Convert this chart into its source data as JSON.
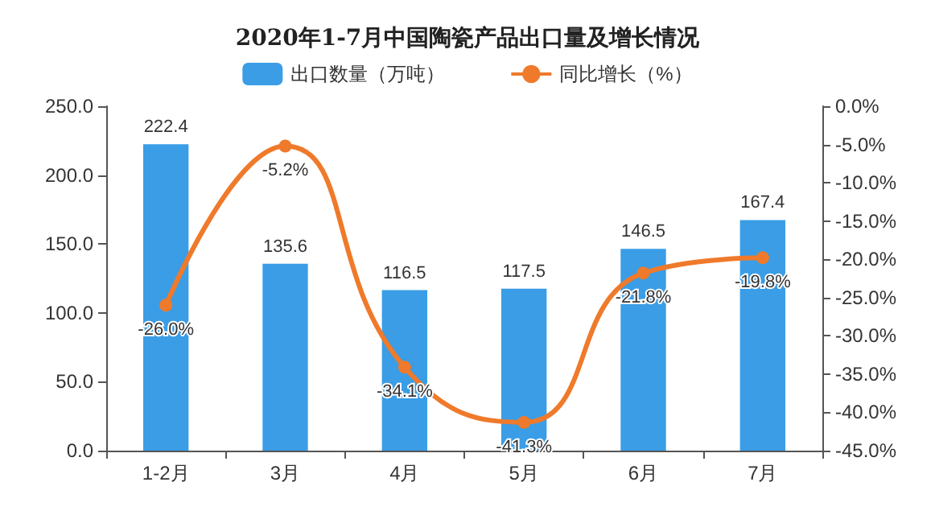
{
  "chart_data": {
    "type": "bar",
    "title": "2020年1-7月中国陶瓷产品出口量及增长情况",
    "categories": [
      "1-2月",
      "3月",
      "4月",
      "5月",
      "6月",
      "7月"
    ],
    "series": [
      {
        "name": "出口数量（万吨）",
        "color": "#3a9de6",
        "values": [
          222.4,
          135.6,
          116.5,
          117.5,
          146.5,
          167.4
        ]
      },
      {
        "name": "同比增长（%）",
        "type": "line",
        "axis": "y2",
        "color": "#ef7a2b",
        "values": [
          -26.0,
          -5.2,
          -34.1,
          -41.3,
          -21.8,
          -19.8
        ],
        "value_labels": [
          "-26.0%",
          "-5.2%",
          "-34.1%",
          "-41.3%",
          "-21.8%",
          "-19.8%"
        ]
      }
    ],
    "ylim": [
      0,
      250
    ],
    "yticks": [
      {
        "value": 0,
        "label": "0.0"
      },
      {
        "value": 50,
        "label": "50.0"
      },
      {
        "value": 100,
        "label": "100.0"
      },
      {
        "value": 150,
        "label": "150.0"
      },
      {
        "value": 200,
        "label": "200.0"
      },
      {
        "value": 250,
        "label": "250.0"
      }
    ],
    "y2lim": [
      -45,
      0
    ],
    "y2ticks": [
      {
        "value": 0,
        "label": "0.0%"
      },
      {
        "value": -5,
        "label": "-5.0%"
      },
      {
        "value": -10,
        "label": "-10.0%"
      },
      {
        "value": -15,
        "label": "-15.0%"
      },
      {
        "value": -20,
        "label": "-20.0%"
      },
      {
        "value": -25,
        "label": "-25.0%"
      },
      {
        "value": -30,
        "label": "-30.0%"
      },
      {
        "value": -35,
        "label": "-35.0%"
      },
      {
        "value": -40,
        "label": "-40.0%"
      },
      {
        "value": -45,
        "label": "-45.0%"
      }
    ],
    "data_labels": true,
    "grid": false,
    "legend": "top",
    "marker": "circle",
    "line_style": "solid"
  }
}
